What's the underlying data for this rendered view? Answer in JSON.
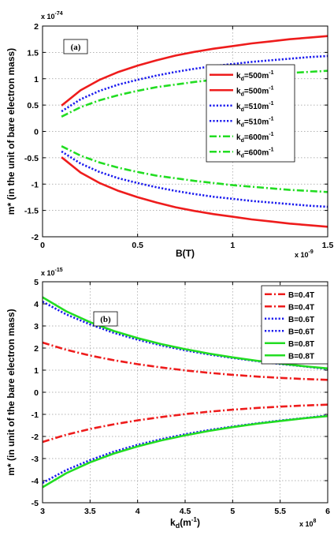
{
  "chart_data": [
    {
      "type": "line",
      "panel_label": "(a)",
      "xlabel": "B(T)",
      "ylabel": "m* (in the unit of bare electron mass)",
      "x_multiplier": {
        "base": "x 10",
        "exp": "-9"
      },
      "y_multiplier": {
        "base": "x 10",
        "exp": "-74"
      },
      "xlim": [
        0,
        1.5
      ],
      "ylim": [
        -2,
        2
      ],
      "x_ticks": [
        0,
        0.5,
        1,
        1.5
      ],
      "x_tick_labels": [
        "0",
        "0.5",
        "1",
        "1.5"
      ],
      "y_ticks": [
        -2,
        -1.5,
        -1,
        -0.5,
        0,
        0.5,
        1,
        1.5,
        2
      ],
      "y_tick_labels": [
        "-2",
        "-1.5",
        "-1",
        "-0.5",
        "0",
        "0.5",
        "1",
        "1.5",
        "2"
      ],
      "grid": true,
      "legend_position": "right",
      "x": [
        0.1,
        0.2,
        0.3,
        0.4,
        0.5,
        0.6,
        0.7,
        0.8,
        0.9,
        1.0,
        1.1,
        1.2,
        1.3,
        1.4,
        1.5
      ],
      "series": [
        {
          "legend_main": "k",
          "legend_sub": "d",
          "legend_tail": "=500m",
          "legend_sup": "-1",
          "color": "#ee1c1c",
          "dash": "solid",
          "values": [
            0.49,
            0.78,
            0.98,
            1.13,
            1.25,
            1.35,
            1.44,
            1.51,
            1.57,
            1.62,
            1.67,
            1.71,
            1.75,
            1.78,
            1.81
          ]
        },
        {
          "legend_main": "k",
          "legend_sub": "d",
          "legend_tail": "=500m",
          "legend_sup": "-1",
          "color": "#ee1c1c",
          "dash": "solid",
          "values": [
            -0.49,
            -0.78,
            -0.98,
            -1.13,
            -1.25,
            -1.35,
            -1.44,
            -1.51,
            -1.57,
            -1.62,
            -1.67,
            -1.71,
            -1.75,
            -1.78,
            -1.81
          ]
        },
        {
          "legend_main": "k",
          "legend_sub": "d",
          "legend_tail": "=510m",
          "legend_sup": "-1",
          "color": "#1a1aee",
          "dash": "dotted",
          "values": [
            0.38,
            0.61,
            0.77,
            0.89,
            0.98,
            1.06,
            1.13,
            1.19,
            1.24,
            1.28,
            1.32,
            1.35,
            1.38,
            1.41,
            1.43
          ]
        },
        {
          "legend_main": "k",
          "legend_sub": "d",
          "legend_tail": "=510m",
          "legend_sup": "-1",
          "color": "#1a1aee",
          "dash": "dotted",
          "values": [
            -0.38,
            -0.61,
            -0.77,
            -0.89,
            -0.98,
            -1.06,
            -1.13,
            -1.19,
            -1.24,
            -1.28,
            -1.32,
            -1.35,
            -1.38,
            -1.41,
            -1.43
          ]
        },
        {
          "legend_main": "k",
          "legend_sub": "d",
          "legend_tail": "=600m",
          "legend_sup": "-1",
          "color": "#22dd22",
          "dash": "dashdot",
          "values": [
            0.28,
            0.46,
            0.59,
            0.69,
            0.77,
            0.84,
            0.89,
            0.94,
            0.98,
            1.02,
            1.05,
            1.08,
            1.11,
            1.13,
            1.15
          ]
        },
        {
          "legend_main": "k",
          "legend_sub": "d",
          "legend_tail": "=600m",
          "legend_sup": "-1",
          "color": "#22dd22",
          "dash": "dashdot",
          "values": [
            -0.28,
            -0.46,
            -0.59,
            -0.69,
            -0.77,
            -0.84,
            -0.89,
            -0.94,
            -0.98,
            -1.02,
            -1.05,
            -1.08,
            -1.11,
            -1.13,
            -1.15
          ]
        }
      ]
    },
    {
      "type": "line",
      "panel_label": "(b)",
      "xlabel_main": "k",
      "xlabel_sub": "d",
      "xlabel_tail": "(m",
      "xlabel_sup": "-1",
      "xlabel_close": ")",
      "ylabel": "m* (in unit of the bare electron mass)",
      "x_multiplier": {
        "base": "x 10",
        "exp": "8"
      },
      "y_multiplier": {
        "base": "x 10",
        "exp": "-15"
      },
      "xlim": [
        3,
        6
      ],
      "ylim": [
        -5,
        5
      ],
      "x_ticks": [
        3,
        3.5,
        4,
        4.5,
        5,
        5.5,
        6
      ],
      "x_tick_labels": [
        "3",
        "3.5",
        "4",
        "4.5",
        "5",
        "5.5",
        "6"
      ],
      "y_ticks": [
        -5,
        -4,
        -3,
        -2,
        -1,
        0,
        1,
        2,
        3,
        4,
        5
      ],
      "y_tick_labels": [
        "-5",
        "-4",
        "-3",
        "-2",
        "-1",
        "0",
        "1",
        "2",
        "3",
        "4",
        "5"
      ],
      "grid": true,
      "legend_position": "top-right",
      "x": [
        3.0,
        3.25,
        3.5,
        3.75,
        4.0,
        4.25,
        4.5,
        4.75,
        5.0,
        5.25,
        5.5,
        5.75,
        6.0
      ],
      "series": [
        {
          "legend": "B=0.4T",
          "color": "#ee1c1c",
          "dash": "dashdot",
          "values": [
            2.25,
            1.92,
            1.66,
            1.45,
            1.27,
            1.12,
            0.99,
            0.88,
            0.79,
            0.71,
            0.65,
            0.6,
            0.56
          ]
        },
        {
          "legend": "B=0.4T",
          "color": "#ee1c1c",
          "dash": "dashdot",
          "values": [
            -2.25,
            -1.92,
            -1.66,
            -1.45,
            -1.27,
            -1.12,
            -0.99,
            -0.88,
            -0.79,
            -0.71,
            -0.65,
            -0.6,
            -0.56
          ]
        },
        {
          "legend": "B=0.6T",
          "color": "#1a1aee",
          "dash": "dotted",
          "values": [
            4.1,
            3.52,
            3.07,
            2.69,
            2.38,
            2.12,
            1.9,
            1.71,
            1.55,
            1.41,
            1.28,
            1.17,
            1.05
          ]
        },
        {
          "legend": "B=0.6T",
          "color": "#1a1aee",
          "dash": "dotted",
          "values": [
            -4.1,
            -3.52,
            -3.07,
            -2.69,
            -2.38,
            -2.12,
            -1.9,
            -1.71,
            -1.55,
            -1.41,
            -1.28,
            -1.17,
            -1.05
          ]
        },
        {
          "legend": "B=0.8T",
          "color": "#22dd22",
          "dash": "solid",
          "values": [
            4.3,
            3.66,
            3.17,
            2.77,
            2.45,
            2.18,
            1.95,
            1.75,
            1.58,
            1.43,
            1.3,
            1.18,
            1.08
          ]
        },
        {
          "legend": "B=0.8T",
          "color": "#22dd22",
          "dash": "solid",
          "values": [
            -4.3,
            -3.66,
            -3.17,
            -2.77,
            -2.45,
            -2.18,
            -1.95,
            -1.75,
            -1.58,
            -1.43,
            -1.3,
            -1.18,
            -1.08
          ]
        }
      ]
    }
  ]
}
